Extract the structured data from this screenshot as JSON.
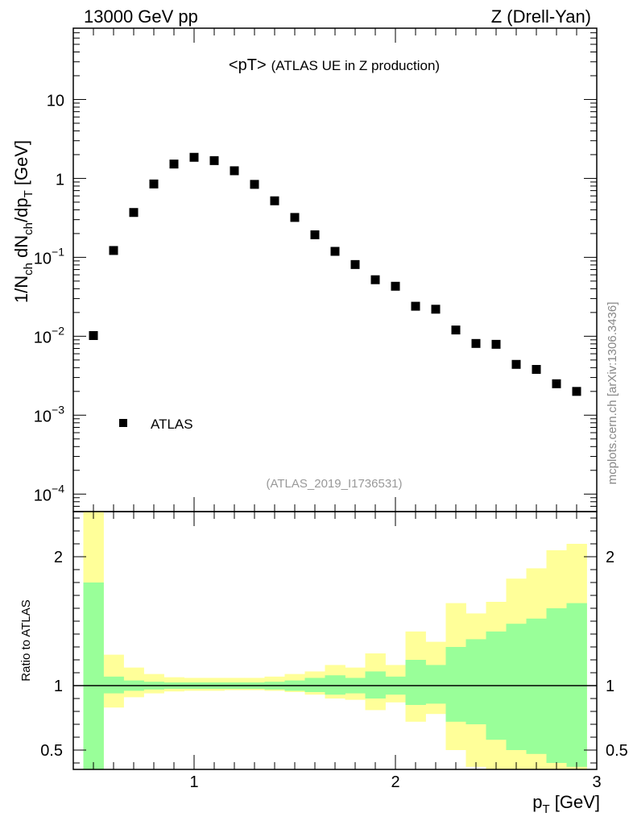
{
  "header": {
    "left": "13000 GeV pp",
    "right": "Z (Drell-Yan)"
  },
  "side_label": "mcplots.cern.ch [arXiv:1306.3436]",
  "chart_data": [
    {
      "type": "scatter",
      "title": "<pT>",
      "subtitle": "(ATLAS UE in Z production)",
      "watermark": "(ATLAS_2019_I1736531)",
      "ylabel": {
        "main": "1/N",
        "sub1": "ch",
        "mid": " dN",
        "sub2": "ch",
        "tail": "/dp",
        "sub3": "T",
        "end": " [GeV]"
      },
      "y_scale": "log",
      "ylim": [
        6e-05,
        80
      ],
      "xlim": [
        0.4,
        3.0
      ],
      "y_ticks": [
        {
          "value": 10,
          "base": "10",
          "exp": ""
        },
        {
          "value": 1,
          "base": "1",
          "exp": ""
        },
        {
          "value": 0.1,
          "base": "10",
          "exp": "−1"
        },
        {
          "value": 0.01,
          "base": "10",
          "exp": "−2"
        },
        {
          "value": 0.001,
          "base": "10",
          "exp": "−3"
        },
        {
          "value": 0.0001,
          "base": "10",
          "exp": "−4"
        }
      ],
      "legend": {
        "label": "ATLAS",
        "position": "bottom-left"
      },
      "series": [
        {
          "name": "ATLAS",
          "color": "#000000",
          "x": [
            0.5,
            0.6,
            0.7,
            0.8,
            0.9,
            1.0,
            1.1,
            1.2,
            1.3,
            1.4,
            1.5,
            1.6,
            1.7,
            1.8,
            1.9,
            2.0,
            2.1,
            2.2,
            2.3,
            2.4,
            2.5,
            2.6,
            2.7,
            2.8,
            2.9
          ],
          "y": [
            0.0102,
            0.122,
            0.37,
            0.85,
            1.52,
            1.85,
            1.68,
            1.25,
            0.84,
            0.52,
            0.32,
            0.193,
            0.119,
            0.081,
            0.052,
            0.043,
            0.024,
            0.022,
            0.012,
            0.0081,
            0.0079,
            0.0044,
            0.0038,
            0.0025,
            0.002
          ]
        }
      ]
    },
    {
      "type": "area",
      "ylabel": "Ratio to ATLAS",
      "xlabel": {
        "main": "p",
        "sub": "T",
        "end": " [GeV]"
      },
      "xlim": [
        0.4,
        3.0
      ],
      "ylim": [
        0.35,
        2.35
      ],
      "x_ticks": [
        1,
        2,
        3
      ],
      "y_ticks": [
        0.5,
        1,
        2
      ],
      "reference_line": 1,
      "bin_edges": [
        0.45,
        0.55,
        0.65,
        0.75,
        0.85,
        0.95,
        1.05,
        1.15,
        1.25,
        1.35,
        1.45,
        1.55,
        1.65,
        1.75,
        1.85,
        1.95,
        2.05,
        2.15,
        2.25,
        2.35,
        2.45,
        2.55,
        2.65,
        2.75,
        2.85,
        2.95
      ],
      "bands": [
        {
          "name": "total uncertainty",
          "color": "#ffff99",
          "low": [
            0.35,
            0.83,
            0.91,
            0.94,
            0.955,
            0.96,
            0.96,
            0.965,
            0.965,
            0.96,
            0.95,
            0.93,
            0.9,
            0.89,
            0.81,
            0.87,
            0.72,
            0.78,
            0.5,
            0.37,
            0.35,
            0.35,
            0.35,
            0.35,
            0.35
          ],
          "high": [
            2.35,
            1.24,
            1.14,
            1.09,
            1.065,
            1.06,
            1.06,
            1.06,
            1.06,
            1.07,
            1.09,
            1.11,
            1.16,
            1.14,
            1.25,
            1.16,
            1.42,
            1.34,
            1.64,
            1.56,
            1.65,
            1.83,
            1.91,
            2.05,
            2.1
          ]
        },
        {
          "name": "statistical uncertainty",
          "color": "#99ff99",
          "low": [
            0.35,
            0.94,
            0.96,
            0.97,
            0.975,
            0.975,
            0.975,
            0.975,
            0.975,
            0.97,
            0.96,
            0.95,
            0.93,
            0.94,
            0.9,
            0.93,
            0.85,
            0.86,
            0.72,
            0.7,
            0.58,
            0.5,
            0.47,
            0.4,
            0.37
          ],
          "high": [
            1.8,
            1.07,
            1.04,
            1.03,
            1.025,
            1.025,
            1.025,
            1.025,
            1.025,
            1.03,
            1.04,
            1.06,
            1.08,
            1.06,
            1.11,
            1.07,
            1.2,
            1.16,
            1.3,
            1.36,
            1.42,
            1.48,
            1.52,
            1.6,
            1.64
          ]
        }
      ]
    }
  ]
}
